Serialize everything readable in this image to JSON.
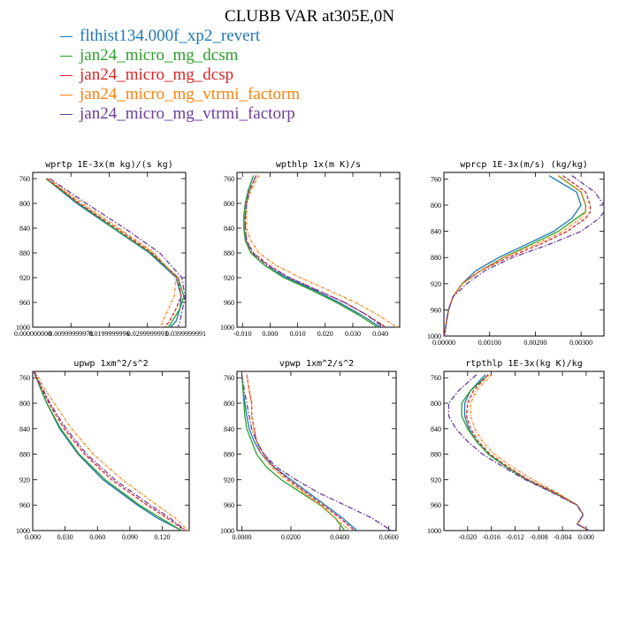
{
  "title": "CLUBB VAR at305E,0N",
  "colors": {
    "s1": "#1f77b4",
    "s2": "#2ca02c",
    "s3": "#d62728",
    "s4": "#ff7f0e",
    "s5": "#6a3d9a"
  },
  "legend": [
    {
      "name": "flthist134.000f_xp2_revert",
      "color": "#1f77b4"
    },
    {
      "name": "jan24_micro_mg_dcsm",
      "color": "#2ca02c"
    },
    {
      "name": "jan24_micro_mg_dcsp",
      "color": "#d62728"
    },
    {
      "name": "jan24_micro_mg_vtrmi_factorm",
      "color": "#ff7f0e"
    },
    {
      "name": "jan24_micro_mg_vtrmi_factorp",
      "color": "#6a3d9a"
    }
  ],
  "chart_data": [
    {
      "type": "line",
      "title": "wprtp  1E-3x(m kg)/(s kg)",
      "xlim": [
        0.0,
        0.04
      ],
      "ylim": [
        1000,
        750
      ],
      "xticks": [
        0.0,
        0.01,
        0.02,
        0.03,
        0.04
      ],
      "xtick_labels": [
        "0.000000000",
        "0.00999999978",
        "0.0199999996",
        "0.0299999993",
        "0.0399999991"
      ],
      "yticks": [
        760,
        800,
        840,
        880,
        920,
        960,
        1000
      ],
      "y": [
        760,
        800,
        840,
        880,
        920,
        950,
        970,
        990,
        1000
      ],
      "series": [
        {
          "name": "flthist134.000f_xp2_revert",
          "values": [
            0.0035,
            0.0115,
            0.021,
            0.0305,
            0.0375,
            0.0388,
            0.0385,
            0.0375,
            0.036
          ]
        },
        {
          "name": "jan24_micro_mg_dcsm",
          "values": [
            0.0035,
            0.012,
            0.0212,
            0.0308,
            0.038,
            0.0395,
            0.0385,
            0.0365,
            0.0355
          ]
        },
        {
          "name": "jan24_micro_mg_dcsp",
          "values": [
            0.0037,
            0.0122,
            0.0218,
            0.0312,
            0.038,
            0.0388,
            0.0375,
            0.0358,
            0.0345
          ]
        },
        {
          "name": "jan24_micro_mg_vtrmi_factorm",
          "values": [
            0.004,
            0.013,
            0.0225,
            0.0318,
            0.0375,
            0.037,
            0.0355,
            0.034,
            0.0335
          ]
        },
        {
          "name": "jan24_micro_mg_vtrmi_factorp",
          "values": [
            0.0045,
            0.014,
            0.024,
            0.0332,
            0.039,
            0.0398,
            0.0392,
            0.0385,
            0.038
          ]
        }
      ]
    },
    {
      "type": "line",
      "title": "wpthlp  1x(m K)/s",
      "xlim": [
        -0.012,
        0.047
      ],
      "ylim": [
        1000,
        750
      ],
      "xticks": [
        -0.01,
        0.0,
        0.01,
        0.02,
        0.03,
        0.04
      ],
      "xtick_labels": [
        "-0.010",
        "0.000",
        "0.010",
        "0.020",
        "0.030",
        "0.040"
      ],
      "yticks": [
        760,
        800,
        840,
        880,
        920,
        960,
        1000
      ],
      "y": [
        755,
        780,
        800,
        820,
        840,
        860,
        880,
        900,
        920,
        940,
        960,
        980,
        1000
      ],
      "series": [
        {
          "name": "flthist134.000f_xp2_revert",
          "values": [
            -0.006,
            -0.008,
            -0.009,
            -0.0095,
            -0.0095,
            -0.009,
            -0.007,
            -0.002,
            0.006,
            0.016,
            0.025,
            0.033,
            0.04
          ]
        },
        {
          "name": "jan24_micro_mg_dcsm",
          "values": [
            -0.006,
            -0.008,
            -0.009,
            -0.0095,
            -0.0095,
            -0.009,
            -0.007,
            -0.002,
            0.005,
            0.015,
            0.024,
            0.032,
            0.039
          ]
        },
        {
          "name": "jan24_micro_mg_dcsp",
          "values": [
            -0.005,
            -0.0075,
            -0.0085,
            -0.009,
            -0.009,
            -0.0085,
            -0.006,
            -0.0005,
            0.007,
            0.017,
            0.027,
            0.035,
            0.042
          ]
        },
        {
          "name": "jan24_micro_mg_vtrmi_factorm",
          "values": [
            -0.004,
            -0.007,
            -0.0085,
            -0.0085,
            -0.0085,
            -0.007,
            -0.004,
            0.002,
            0.011,
            0.021,
            0.031,
            0.039,
            0.046
          ]
        },
        {
          "name": "jan24_micro_mg_vtrmi_factorp",
          "values": [
            -0.005,
            -0.0075,
            -0.0085,
            -0.009,
            -0.009,
            -0.0085,
            -0.0065,
            -0.001,
            0.007,
            0.017,
            0.027,
            0.035,
            0.041
          ]
        }
      ]
    },
    {
      "type": "line",
      "title": "wprcp  1E-3x(m/s) (kg/kg)",
      "xlim": [
        0.0,
        0.0035
      ],
      "ylim": [
        1000,
        750
      ],
      "xticks": [
        0.0,
        0.001,
        0.002,
        0.003
      ],
      "xtick_labels": [
        "0.00000",
        "0.00100",
        "0.00200",
        "0.00300"
      ],
      "yticks": [
        760,
        800,
        840,
        880,
        920,
        960,
        1000
      ],
      "y": [
        755,
        780,
        800,
        810,
        820,
        840,
        860,
        880,
        900,
        920,
        940,
        960,
        980,
        1000
      ],
      "series": [
        {
          "name": "flthist134.000f_xp2_revert",
          "values": [
            0.0023,
            0.0029,
            0.003,
            0.0029,
            0.0028,
            0.0024,
            0.0018,
            0.0012,
            0.0007,
            0.0004,
            0.0002,
            0.0001,
            5e-05,
            1e-05
          ]
        },
        {
          "name": "jan24_micro_mg_dcsm",
          "values": [
            0.0025,
            0.003,
            0.0031,
            0.0031,
            0.0029,
            0.0025,
            0.0019,
            0.0013,
            0.0008,
            0.0004,
            0.0002,
            0.0001,
            5e-05,
            1e-05
          ]
        },
        {
          "name": "jan24_micro_mg_dcsp",
          "values": [
            0.0026,
            0.0031,
            0.0032,
            0.0032,
            0.0031,
            0.0027,
            0.0021,
            0.0014,
            0.0008,
            0.0004,
            0.0002,
            0.0001,
            5e-05,
            1e-05
          ]
        },
        {
          "name": "jan24_micro_mg_vtrmi_factorm",
          "values": [
            0.0025,
            0.003,
            0.0031,
            0.0031,
            0.003,
            0.0026,
            0.002,
            0.0013,
            0.0008,
            0.0004,
            0.0002,
            0.0001,
            5e-05,
            1e-05
          ]
        },
        {
          "name": "jan24_micro_mg_vtrmi_factorp",
          "values": [
            0.0028,
            0.0033,
            0.0035,
            0.0035,
            0.0034,
            0.003,
            0.0023,
            0.0015,
            0.0009,
            0.0005,
            0.0002,
            0.0001,
            5e-05,
            1e-05
          ]
        }
      ]
    },
    {
      "type": "line",
      "title": "upwp  1xm^2/s^2",
      "xlim": [
        0.0,
        0.145
      ],
      "ylim": [
        1000,
        750
      ],
      "xticks": [
        0.0,
        0.03,
        0.06,
        0.09,
        0.12
      ],
      "xtick_labels": [
        "0.000",
        "0.030",
        "0.060",
        "0.090",
        "0.120"
      ],
      "yticks": [
        760,
        800,
        840,
        880,
        920,
        960,
        1000
      ],
      "y": [
        750,
        780,
        800,
        840,
        880,
        920,
        960,
        980,
        1000
      ],
      "series": [
        {
          "name": "flthist134.000f_xp2_revert",
          "values": [
            0.001,
            0.008,
            0.013,
            0.025,
            0.042,
            0.065,
            0.097,
            0.115,
            0.138
          ]
        },
        {
          "name": "jan24_micro_mg_dcsm",
          "values": [
            0.001,
            0.008,
            0.013,
            0.026,
            0.043,
            0.067,
            0.099,
            0.118,
            0.138
          ]
        },
        {
          "name": "jan24_micro_mg_dcsp",
          "values": [
            0.001,
            0.009,
            0.015,
            0.029,
            0.048,
            0.073,
            0.106,
            0.124,
            0.141
          ]
        },
        {
          "name": "jan24_micro_mg_vtrmi_factorm",
          "values": [
            0.002,
            0.012,
            0.02,
            0.036,
            0.056,
            0.083,
            0.115,
            0.132,
            0.144
          ]
        },
        {
          "name": "jan24_micro_mg_vtrmi_factorp",
          "values": [
            0.001,
            0.01,
            0.016,
            0.031,
            0.05,
            0.076,
            0.109,
            0.127,
            0.142
          ]
        }
      ]
    },
    {
      "type": "line",
      "title": "vpwp  1xm^2/s^2",
      "xlim": [
        -0.002,
        0.063
      ],
      "ylim": [
        1000,
        750
      ],
      "xticks": [
        0.0,
        0.02,
        0.04,
        0.06
      ],
      "xtick_labels": [
        "0.0000",
        "0.0200",
        "0.0400",
        "0.0600"
      ],
      "yticks": [
        760,
        800,
        840,
        880,
        920,
        960,
        1000
      ],
      "y": [
        755,
        780,
        800,
        820,
        840,
        860,
        880,
        900,
        920,
        940,
        960,
        980,
        1000
      ],
      "series": [
        {
          "name": "flthist134.000f_xp2_revert",
          "values": [
            0.0,
            0.0005,
            0.0012,
            0.002,
            0.003,
            0.005,
            0.008,
            0.013,
            0.02,
            0.027,
            0.034,
            0.041,
            0.047
          ]
        },
        {
          "name": "jan24_micro_mg_dcsm",
          "values": [
            0.0,
            0.0005,
            0.0008,
            0.0012,
            0.002,
            0.004,
            0.006,
            0.01,
            0.016,
            0.024,
            0.032,
            0.038,
            0.042
          ]
        },
        {
          "name": "jan24_micro_mg_dcsp",
          "values": [
            0.002,
            0.003,
            0.004,
            0.004,
            0.005,
            0.006,
            0.009,
            0.013,
            0.019,
            0.026,
            0.033,
            0.04,
            0.046
          ]
        },
        {
          "name": "jan24_micro_mg_vtrmi_factorm",
          "values": [
            0.002,
            0.003,
            0.004,
            0.004,
            0.005,
            0.006,
            0.008,
            0.012,
            0.018,
            0.025,
            0.032,
            0.038,
            0.044
          ]
        },
        {
          "name": "jan24_micro_mg_vtrmi_factorp",
          "values": [
            0.0,
            0.001,
            0.002,
            0.003,
            0.004,
            0.006,
            0.009,
            0.014,
            0.022,
            0.031,
            0.042,
            0.053,
            0.061
          ]
        }
      ]
    },
    {
      "type": "line",
      "title": "rtpthlp  1E-3x(kg K)/kg",
      "xlim": [
        -0.024,
        0.003
      ],
      "ylim": [
        1000,
        750
      ],
      "xticks": [
        -0.02,
        -0.016,
        -0.012,
        -0.008,
        -0.004,
        0.0
      ],
      "xtick_labels": [
        "-0.020",
        "-0.016",
        "-0.012",
        "-0.008",
        "-0.004",
        "0.000"
      ],
      "yticks": [
        760,
        800,
        840,
        880,
        920,
        960,
        1000
      ],
      "y": [
        755,
        780,
        800,
        820,
        840,
        860,
        880,
        900,
        920,
        940,
        960,
        975,
        990,
        1000
      ],
      "series": [
        {
          "name": "flthist134.000f_xp2_revert",
          "values": [
            -0.017,
            -0.0195,
            -0.0205,
            -0.0205,
            -0.0198,
            -0.0185,
            -0.0165,
            -0.0135,
            -0.01,
            -0.0055,
            -0.0015,
            -0.0005,
            -0.0015,
            0.0005
          ]
        },
        {
          "name": "jan24_micro_mg_dcsm",
          "values": [
            -0.0165,
            -0.0195,
            -0.021,
            -0.021,
            -0.02,
            -0.0185,
            -0.0165,
            -0.0135,
            -0.01,
            -0.0055,
            -0.0015,
            -0.0005,
            -0.0015,
            0.0005
          ]
        },
        {
          "name": "jan24_micro_mg_dcsp",
          "values": [
            -0.0165,
            -0.019,
            -0.02,
            -0.0202,
            -0.0195,
            -0.0182,
            -0.0162,
            -0.0132,
            -0.0098,
            -0.0053,
            -0.0015,
            -0.0005,
            -0.0015,
            0.0005
          ]
        },
        {
          "name": "jan24_micro_mg_vtrmi_factorm",
          "values": [
            -0.016,
            -0.0185,
            -0.0195,
            -0.0195,
            -0.0188,
            -0.0175,
            -0.0155,
            -0.0125,
            -0.009,
            -0.005,
            -0.0015,
            -0.0005,
            -0.0015,
            0.0005
          ]
        },
        {
          "name": "jan24_micro_mg_vtrmi_factorp",
          "values": [
            -0.0185,
            -0.0215,
            -0.0232,
            -0.0232,
            -0.022,
            -0.02,
            -0.0175,
            -0.014,
            -0.0103,
            -0.0058,
            -0.0016,
            -0.0005,
            -0.0015,
            0.0005
          ]
        }
      ]
    }
  ]
}
